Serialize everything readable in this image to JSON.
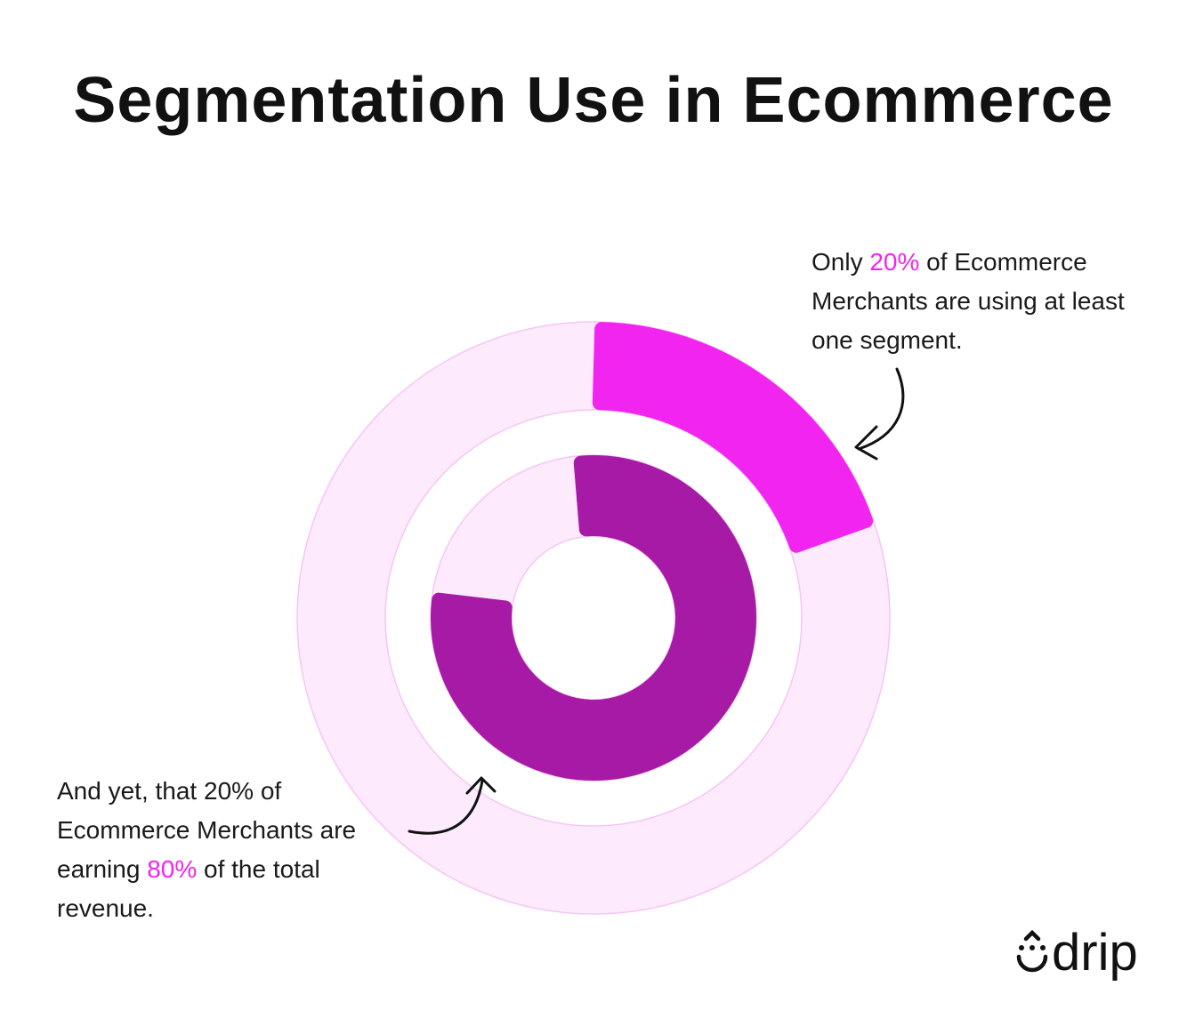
{
  "chart_data": {
    "type": "pie",
    "title": "Segmentation Use in Ecommerce",
    "series": [
      {
        "label": "Ecommerce Merchants using at least one segment",
        "value": 20,
        "unit": "%",
        "ring": "outer",
        "color": "#f224f0",
        "track_color": "#fdeafd"
      },
      {
        "label": "Share of total revenue earned by that 20% of merchants",
        "value": 80,
        "unit": "%",
        "ring": "inner",
        "color": "#a61aa6",
        "track_color": "#fdeafd"
      }
    ],
    "annotations": [
      {
        "pre": "Only ",
        "highlight": "20%",
        "post": " of Ecommerce Merchants are using at least one segment."
      },
      {
        "pre": "And yet, that 20% of Ecommerce Merchants are earning ",
        "highlight": "80%",
        "post": " of the total revenue."
      }
    ]
  },
  "brand": {
    "logo": "drip",
    "icon": "drip-smile-icon"
  }
}
